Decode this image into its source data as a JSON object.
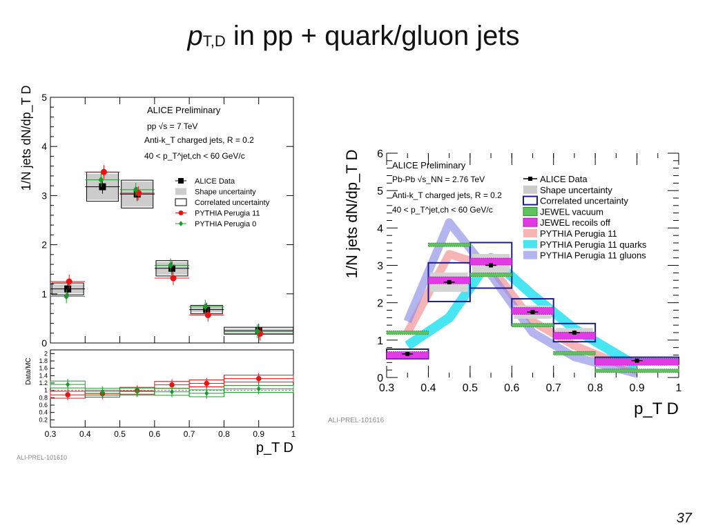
{
  "slide": {
    "title_italic": "p",
    "title_sub": "T,D",
    "title_rest": " in pp + quark/gluon jets",
    "page_number": "37"
  },
  "chart_data": [
    {
      "type": "scatter",
      "panel": "left",
      "ylabel": "1/N jets dN/dp_T D",
      "ylim": [
        0,
        5
      ],
      "yticks": [
        "0",
        "1",
        "2",
        "3",
        "4",
        "5"
      ],
      "xlim": [
        0.3,
        1.0
      ],
      "xticks": [
        "0.3",
        "0.4",
        "0.5",
        "0.6",
        "0.7",
        "0.8",
        "0.9",
        "1"
      ],
      "xlabel": "p_T D",
      "text": {
        "prelim": "ALICE Preliminary",
        "energy": "pp √s = 7 TeV",
        "algo": "Anti-k_T charged jets, R = 0.2",
        "range": "40 < p_T^jet,ch < 60 GeV/c",
        "footer": "ALI-PREL-101610"
      },
      "legend": [
        "ALICE Data",
        "Shape uncertainty",
        "Correlated uncertainty",
        "PYTHIA Perugia 11",
        "PYTHIA Perugia 0"
      ],
      "bins": [
        0.3,
        0.4,
        0.5,
        0.6,
        0.7,
        0.8,
        1.0
      ],
      "x": [
        0.35,
        0.45,
        0.55,
        0.65,
        0.75,
        0.9
      ],
      "series": [
        {
          "name": "ALICE Data",
          "values": [
            1.1,
            3.18,
            3.03,
            1.52,
            0.68,
            0.25
          ]
        },
        {
          "name": "PYTHIA Perugia 11",
          "values": [
            1.25,
            3.48,
            3.05,
            1.32,
            0.57,
            0.19
          ]
        },
        {
          "name": "PYTHIA Perugia 0",
          "values": [
            0.95,
            3.32,
            3.12,
            1.58,
            0.74,
            0.24
          ]
        }
      ],
      "ratio": {
        "ylabel": "Data/MC",
        "ylim": [
          0,
          2.1
        ],
        "yticks": [
          "0.2",
          "0.4",
          "0.6",
          "0.8",
          "1",
          "1.2",
          "1.4",
          "1.6",
          "1.8",
          "2"
        ],
        "series": [
          {
            "name": "Data/Perugia 11",
            "values": [
              0.88,
              0.91,
              0.99,
              1.15,
              1.19,
              1.32
            ]
          },
          {
            "name": "Data/Perugia 0",
            "values": [
              1.16,
              0.96,
              0.97,
              0.96,
              0.92,
              1.04
            ]
          }
        ]
      }
    },
    {
      "type": "line",
      "panel": "right",
      "ylabel": "1/N jets dN/dp_T D",
      "ylim": [
        0,
        6
      ],
      "yticks": [
        "0",
        "1",
        "2",
        "3",
        "4",
        "5",
        "6"
      ],
      "xlim": [
        0.3,
        1.0
      ],
      "xticks": [
        "0.3",
        "0.4",
        "0.5",
        "0.6",
        "0.7",
        "0.8",
        "0.9",
        "1"
      ],
      "xlabel": "p_T D",
      "text": {
        "prelim": "ALICE Preliminary",
        "energy": "Pb-Pb √s_NN = 2.76 TeV",
        "algo": "Anti-k_T charged jets, R = 0.2",
        "range": "40 < p_T^jet,ch < 60 GeV/c",
        "footer": "ALI-PREL-101616"
      },
      "legend": [
        "ALICE Data",
        "Shape uncertainty",
        "Correlated uncertainty",
        "JEWEL vacuum",
        "JEWEL recoils off",
        "PYTHIA Perugia 11",
        "PYTHIA Perugia 11 quarks",
        "PYTHIA Perugia 11 gluons"
      ],
      "bins": [
        0.3,
        0.4,
        0.5,
        0.6,
        0.7,
        0.8,
        1.0
      ],
      "x": [
        0.35,
        0.45,
        0.55,
        0.65,
        0.75,
        0.9
      ],
      "series": [
        {
          "name": "ALICE Data",
          "values": [
            0.63,
            2.55,
            3.0,
            1.75,
            1.2,
            0.45
          ]
        },
        {
          "name": "JEWEL vacuum",
          "values": [
            1.2,
            3.55,
            2.75,
            1.4,
            0.65,
            0.18
          ]
        },
        {
          "name": "JEWEL recoils off",
          "values": [
            0.6,
            2.6,
            3.1,
            1.78,
            1.12,
            0.42
          ]
        }
      ],
      "curves": [
        {
          "name": "PYTHIA Perugia 11",
          "x": [
            0.35,
            0.45,
            0.55,
            0.65,
            0.75,
            0.9
          ],
          "values": [
            1.2,
            3.3,
            2.95,
            1.5,
            0.85,
            0.18
          ]
        },
        {
          "name": "PYTHIA Perugia 11 quarks",
          "x": [
            0.35,
            0.45,
            0.55,
            0.65,
            0.75,
            0.9
          ],
          "values": [
            0.85,
            1.6,
            3.2,
            2.2,
            1.3,
            0.3
          ]
        },
        {
          "name": "PYTHIA Perugia 11 gluons",
          "x": [
            0.35,
            0.45,
            0.55,
            0.65,
            0.75,
            0.9
          ],
          "values": [
            1.5,
            4.15,
            2.75,
            1.2,
            0.55,
            0.1
          ]
        }
      ]
    }
  ]
}
